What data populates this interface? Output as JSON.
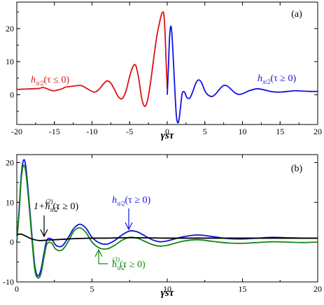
{
  "colors": {
    "red": "#dd1111",
    "blue": "#1111dd",
    "green": "#118811",
    "black": "#000000"
  },
  "chart_data": [
    {
      "type": "line",
      "panel_label": "(a)",
      "xlabel": "γsτ",
      "xlim": [
        -20,
        20
      ],
      "ylim": [
        -9,
        28
      ],
      "xticks": [
        -20,
        -15,
        -10,
        -5,
        0,
        5,
        10,
        15,
        20
      ],
      "yticks": [
        0,
        10,
        20
      ],
      "series": [
        {
          "name": "hπ/2(τ ≤ 0)",
          "color": "red",
          "x": [
            -20,
            -19,
            -18,
            -17,
            -16.5,
            -15.5,
            -15,
            -14,
            -13.5,
            -12.5,
            -11.5,
            -11,
            -10,
            -9.5,
            -9,
            -8.5,
            -8,
            -7.5,
            -7,
            -6.5,
            -6,
            -5.5,
            -5,
            -4.6,
            -4.2,
            -3.8,
            -3.4,
            -3,
            -2.6,
            -2.2,
            -1.8,
            -1.4,
            -1.1,
            -0.8,
            -0.6,
            -0.45,
            -0.3,
            -0.15,
            0
          ],
          "y": [
            1.6,
            1.7,
            1.8,
            1.9,
            2.2,
            1.4,
            1.2,
            1.8,
            2.3,
            2.6,
            2.8,
            2.3,
            1.0,
            0.9,
            1.8,
            3.2,
            4.2,
            3.5,
            1.5,
            -0.6,
            -1.2,
            1.0,
            5.5,
            8.3,
            8.9,
            5.0,
            -1.0,
            -3.5,
            -1.5,
            4.0,
            11.0,
            17.5,
            21.0,
            24.0,
            25.0,
            24.2,
            19.0,
            10.0,
            1.8
          ]
        },
        {
          "name": "hπ/2(τ ≥ 0)",
          "color": "blue",
          "x": [
            0,
            0.15,
            0.3,
            0.45,
            0.6,
            0.8,
            1.0,
            1.2,
            1.4,
            1.6,
            1.8,
            2.0,
            2.3,
            2.6,
            3.0,
            3.4,
            3.8,
            4.2,
            4.6,
            5.0,
            5.5,
            6.0,
            6.5,
            7.0,
            7.5,
            8.0,
            8.5,
            9.0,
            9.5,
            10.0,
            11.0,
            12.0,
            13.0,
            14.0,
            15.0,
            16.0,
            17.0,
            18.0,
            19.0,
            20.0
          ],
          "y": [
            0,
            8.0,
            17.0,
            20.6,
            19.0,
            11.0,
            2.0,
            -6.0,
            -8.5,
            -7.0,
            -3.0,
            0.5,
            0.8,
            -0.8,
            -1.0,
            1.0,
            3.5,
            4.5,
            3.5,
            1.2,
            -0.2,
            -0.5,
            0.4,
            1.8,
            2.8,
            2.6,
            1.6,
            0.6,
            0.1,
            0.3,
            1.3,
            1.8,
            1.4,
            0.9,
            0.8,
            1.0,
            1.2,
            1.1,
            1.0,
            1.0
          ]
        }
      ],
      "annotations": [
        {
          "label": "h",
          "sub": "π/2",
          "rest": "(τ ≤ 0)",
          "color": "red"
        },
        {
          "label": "h",
          "sub": "π/2",
          "rest": "(τ ≥ 0)",
          "color": "blue"
        }
      ]
    },
    {
      "type": "line",
      "panel_label": "(b)",
      "xlabel": "γsτ",
      "xlim": [
        0,
        20
      ],
      "ylim": [
        -10,
        22
      ],
      "xticks": [
        0,
        5,
        10,
        15,
        20
      ],
      "yticks": [
        -10,
        0,
        10,
        20
      ],
      "series": [
        {
          "name": "hπ/2(τ ≥ 0)",
          "color": "blue",
          "x": [
            0,
            0.15,
            0.3,
            0.45,
            0.6,
            0.8,
            1.0,
            1.2,
            1.4,
            1.6,
            1.8,
            2.0,
            2.3,
            2.6,
            3.0,
            3.4,
            3.8,
            4.2,
            4.6,
            5.0,
            5.5,
            6.0,
            6.5,
            7.0,
            7.5,
            8.0,
            8.5,
            9.0,
            9.5,
            10.0,
            11.0,
            12.0,
            13.0,
            14.0,
            15.0,
            16.0,
            17.0,
            18.0,
            19.0,
            20.0
          ],
          "y": [
            0,
            8.0,
            17.0,
            20.6,
            19.0,
            11.0,
            2.0,
            -6.0,
            -8.5,
            -7.0,
            -3.0,
            0.5,
            0.8,
            -0.8,
            -1.0,
            1.0,
            3.5,
            4.5,
            3.5,
            1.2,
            -0.2,
            -0.5,
            0.4,
            1.8,
            2.8,
            2.6,
            1.6,
            0.6,
            0.1,
            0.3,
            1.3,
            1.8,
            1.4,
            0.9,
            0.8,
            1.0,
            1.2,
            1.1,
            1.0,
            1.0
          ]
        },
        {
          "name": "hπ/2(3)(τ ≥ 0)",
          "color": "green",
          "x": [
            0,
            0.15,
            0.3,
            0.45,
            0.6,
            0.8,
            1.0,
            1.2,
            1.4,
            1.6,
            1.8,
            2.0,
            2.3,
            2.6,
            3.0,
            3.4,
            3.8,
            4.2,
            4.6,
            5.0,
            5.5,
            6.0,
            6.5,
            7.0,
            7.5,
            8.0,
            8.5,
            9.0,
            9.5,
            10.0,
            11.0,
            12.0,
            13.0,
            14.0,
            15.0,
            16.0,
            17.0,
            18.0,
            19.0,
            20.0
          ],
          "y": [
            0,
            7.0,
            16.0,
            19.3,
            17.5,
            10.0,
            1.0,
            -7.0,
            -9.0,
            -8.0,
            -4.0,
            -0.5,
            -0.2,
            -1.8,
            -2.0,
            0.0,
            2.8,
            3.6,
            2.4,
            0.0,
            -1.5,
            -1.7,
            -0.8,
            0.5,
            1.2,
            1.0,
            0.2,
            -0.6,
            -1.0,
            -0.8,
            0.2,
            0.6,
            0.2,
            -0.2,
            -0.3,
            -0.1,
            0.1,
            0.0,
            -0.1,
            0.0
          ]
        },
        {
          "name": "1+hπ/2(2)(τ ≥ 0)",
          "color": "black",
          "x": [
            0,
            0.3,
            0.6,
            1.0,
            1.5,
            2.0,
            2.5,
            3.0,
            4.0,
            5.0,
            6.0,
            7.0,
            8.0,
            9.0,
            10.0,
            12.0,
            14.0,
            16.0,
            18.0,
            20.0
          ],
          "y": [
            1.9,
            2.0,
            1.5,
            0.8,
            0.4,
            0.5,
            0.6,
            0.7,
            0.9,
            1.0,
            1.0,
            1.1,
            1.1,
            1.05,
            1.0,
            1.0,
            1.0,
            1.0,
            1.0,
            1.0
          ]
        }
      ],
      "annotations": [
        {
          "label": "1+h",
          "sub": "π/2",
          "sup": "(2)",
          "rest": "(τ ≥ 0)",
          "color": "black"
        },
        {
          "label": "h",
          "sub": "π/2",
          "rest": "(τ ≥ 0)",
          "color": "blue"
        },
        {
          "label": "h",
          "sub": "π/2",
          "sup": "(3)",
          "rest": "(τ ≥ 0)",
          "color": "green"
        }
      ]
    }
  ]
}
